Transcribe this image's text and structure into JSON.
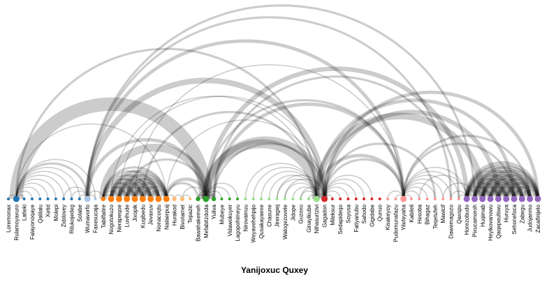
{
  "title": "Yanijoxuc Quxey",
  "groups": {
    "g1": "#1f77b4",
    "g2": "#aec7e8",
    "g3": "#ff7f0e",
    "g4": "#ffbb78",
    "g5": "#2ca02c",
    "g6": "#98df8a",
    "g7": "#d62728",
    "g8": "#ff9896",
    "g9": "#9467bd"
  },
  "nodes": [
    {
      "label": "Loremonax",
      "group": "g1",
      "size": 1
    },
    {
      "label": "Rulamoyaxuro",
      "group": "g1",
      "size": 3
    },
    {
      "label": "Latleki",
      "group": "g1",
      "size": 1
    },
    {
      "label": "Falayonoqaye",
      "group": "g1",
      "size": 1
    },
    {
      "label": "Qalilalu",
      "group": "g1",
      "size": 1
    },
    {
      "label": "Xetid",
      "group": "g1",
      "size": 1
    },
    {
      "label": "Molepi",
      "group": "g1",
      "size": 1
    },
    {
      "label": "Ziddovey",
      "group": "g1",
      "size": 1
    },
    {
      "label": "Rilukojedeg",
      "group": "g1",
      "size": 1
    },
    {
      "label": "Solabe",
      "group": "g1",
      "size": 1
    },
    {
      "label": "Wumavorfo",
      "group": "g2",
      "size": 3
    },
    {
      "label": "Faxesucaja",
      "group": "g2",
      "size": 1
    },
    {
      "label": "Tabilfatire",
      "group": "g3",
      "size": 2
    },
    {
      "label": "Nogotokuzo",
      "group": "g3",
      "size": 3
    },
    {
      "label": "Nerapeqoe",
      "group": "g3",
      "size": 3
    },
    {
      "label": "Luvihude",
      "group": "g3",
      "size": 3
    },
    {
      "label": "Jixopik",
      "group": "g3",
      "size": 3
    },
    {
      "label": "Kuqibedu",
      "group": "g3",
      "size": 3
    },
    {
      "label": "Jevaxuv",
      "group": "g3",
      "size": 3
    },
    {
      "label": "Nonacoqtu",
      "group": "g3",
      "size": 3
    },
    {
      "label": "Nalaerpuij",
      "group": "g3",
      "size": 3
    },
    {
      "label": "Hurakod",
      "group": "g4",
      "size": 2
    },
    {
      "label": "Bivotamet",
      "group": "g4",
      "size": 2
    },
    {
      "label": "Tepazic",
      "group": "g4",
      "size": 1
    },
    {
      "label": "Bawahakemeh",
      "group": "g5",
      "size": 2
    },
    {
      "label": "Mefabitzdoda",
      "group": "g5",
      "size": 3
    },
    {
      "label": "Yuliva",
      "group": "g5",
      "size": 2
    },
    {
      "label": "Mubeye",
      "group": "g5",
      "size": 1
    },
    {
      "label": "Vidawokuyer",
      "group": "g5",
      "size": 1
    },
    {
      "label": "Lagopohimeyu",
      "group": "g5",
      "size": 1
    },
    {
      "label": "Nirovamuu",
      "group": "g6",
      "size": 1
    },
    {
      "label": "Weyavehehpijo",
      "group": "g6",
      "size": 1
    },
    {
      "label": "Qusakayaexe",
      "group": "g6",
      "size": 1
    },
    {
      "label": "Chasune",
      "group": "g6",
      "size": 1
    },
    {
      "label": "Jireragiej",
      "group": "g6",
      "size": 1
    },
    {
      "label": "Walogezovele",
      "group": "g6",
      "size": 1
    },
    {
      "label": "Jidope",
      "group": "g6",
      "size": 1
    },
    {
      "label": "Guzoxu",
      "group": "g6",
      "size": 1
    },
    {
      "label": "Ginayikube",
      "group": "g6",
      "size": 1
    },
    {
      "label": "Nihasurtzivi",
      "group": "g6",
      "size": 3
    },
    {
      "label": "Gagadon",
      "group": "g7",
      "size": 3
    },
    {
      "label": "Mileksur",
      "group": "g7",
      "size": 1
    },
    {
      "label": "Sedapideqo",
      "group": "g7",
      "size": 1
    },
    {
      "label": "Soyusa",
      "group": "g7",
      "size": 1
    },
    {
      "label": "Fatiyanubu",
      "group": "g7",
      "size": 1
    },
    {
      "label": "Sahodo",
      "group": "g7",
      "size": 1
    },
    {
      "label": "Gigidabe",
      "group": "g7",
      "size": 1
    },
    {
      "label": "Qunuo",
      "group": "g7",
      "size": 1
    },
    {
      "label": "Kisakeyoy",
      "group": "g8",
      "size": 1
    },
    {
      "label": "Pudomunafazu",
      "group": "g8",
      "size": 1
    },
    {
      "label": "Yilefeyaha",
      "group": "g8",
      "size": 3
    },
    {
      "label": "Kabileli",
      "group": "g8",
      "size": 1
    },
    {
      "label": "Hesoba",
      "group": "g8",
      "size": 1
    },
    {
      "label": "Bihagaz",
      "group": "g8",
      "size": 1
    },
    {
      "label": "Teqetufeh",
      "group": "g8",
      "size": 1
    },
    {
      "label": "Mawicif",
      "group": "g8",
      "size": 1
    },
    {
      "label": "Dawemagozo",
      "group": "g8",
      "size": 1
    },
    {
      "label": "Qaxspu",
      "group": "g8",
      "size": 1
    },
    {
      "label": "Horezobudo",
      "group": "g9",
      "size": 3
    },
    {
      "label": "Pixucamoroh",
      "group": "g9",
      "size": 3
    },
    {
      "label": "Huqimab",
      "group": "g9",
      "size": 3
    },
    {
      "label": "Heyikovanowu",
      "group": "g9",
      "size": 3
    },
    {
      "label": "Qaqepeultiwu",
      "group": "g9",
      "size": 3
    },
    {
      "label": "Huruya",
      "group": "g9",
      "size": 3
    },
    {
      "label": "Sehonefoca",
      "group": "g9",
      "size": 3
    },
    {
      "label": "Zabegu",
      "group": "g9",
      "size": 3
    },
    {
      "label": "Judojanmo",
      "group": "g9",
      "size": 3
    },
    {
      "label": "Zacafinijelo",
      "group": "g9",
      "size": 3
    }
  ],
  "links": [
    {
      "source": 0,
      "target": 1,
      "value": 1
    },
    {
      "source": 1,
      "target": 2,
      "value": 1
    },
    {
      "source": 1,
      "target": 3,
      "value": 1
    },
    {
      "source": 1,
      "target": 4,
      "value": 1
    },
    {
      "source": 1,
      "target": 5,
      "value": 1
    },
    {
      "source": 1,
      "target": 6,
      "value": 1
    },
    {
      "source": 1,
      "target": 7,
      "value": 1
    },
    {
      "source": 1,
      "target": 8,
      "value": 1
    },
    {
      "source": 1,
      "target": 9,
      "value": 1
    },
    {
      "source": 1,
      "target": 10,
      "value": 2
    },
    {
      "source": 1,
      "target": 11,
      "value": 1
    },
    {
      "source": 1,
      "target": 20,
      "value": 1
    },
    {
      "source": 1,
      "target": 25,
      "value": 12
    },
    {
      "source": 1,
      "target": 39,
      "value": 2
    },
    {
      "source": 7,
      "target": 10,
      "value": 1
    },
    {
      "source": 8,
      "target": 10,
      "value": 1
    },
    {
      "source": 9,
      "target": 10,
      "value": 1
    },
    {
      "source": 10,
      "target": 11,
      "value": 1
    },
    {
      "source": 10,
      "target": 12,
      "value": 1
    },
    {
      "source": 10,
      "target": 25,
      "value": 3
    },
    {
      "source": 10,
      "target": 40,
      "value": 5
    },
    {
      "source": 10,
      "target": 50,
      "value": 3
    },
    {
      "source": 10,
      "target": 56,
      "value": 2
    },
    {
      "source": 10,
      "target": 59,
      "value": 2
    },
    {
      "source": 12,
      "target": 13,
      "value": 2
    },
    {
      "source": 12,
      "target": 14,
      "value": 2
    },
    {
      "source": 12,
      "target": 15,
      "value": 2
    },
    {
      "source": 12,
      "target": 16,
      "value": 2
    },
    {
      "source": 12,
      "target": 17,
      "value": 2
    },
    {
      "source": 12,
      "target": 18,
      "value": 2
    },
    {
      "source": 12,
      "target": 19,
      "value": 2
    },
    {
      "source": 12,
      "target": 20,
      "value": 2
    },
    {
      "source": 12,
      "target": 25,
      "value": 7
    },
    {
      "source": 13,
      "target": 14,
      "value": 3
    },
    {
      "source": 13,
      "target": 15,
      "value": 3
    },
    {
      "source": 13,
      "target": 16,
      "value": 3
    },
    {
      "source": 13,
      "target": 17,
      "value": 3
    },
    {
      "source": 13,
      "target": 18,
      "value": 3
    },
    {
      "source": 13,
      "target": 19,
      "value": 3
    },
    {
      "source": 13,
      "target": 20,
      "value": 3
    },
    {
      "source": 13,
      "target": 39,
      "value": 1
    },
    {
      "source": 14,
      "target": 15,
      "value": 3
    },
    {
      "source": 14,
      "target": 16,
      "value": 3
    },
    {
      "source": 14,
      "target": 17,
      "value": 3
    },
    {
      "source": 14,
      "target": 18,
      "value": 3
    },
    {
      "source": 14,
      "target": 19,
      "value": 3
    },
    {
      "source": 14,
      "target": 20,
      "value": 3
    },
    {
      "source": 14,
      "target": 40,
      "value": 1
    },
    {
      "source": 15,
      "target": 16,
      "value": 3
    },
    {
      "source": 15,
      "target": 17,
      "value": 3
    },
    {
      "source": 15,
      "target": 18,
      "value": 3
    },
    {
      "source": 15,
      "target": 19,
      "value": 3
    },
    {
      "source": 15,
      "target": 20,
      "value": 3
    },
    {
      "source": 16,
      "target": 17,
      "value": 3
    },
    {
      "source": 16,
      "target": 18,
      "value": 3
    },
    {
      "source": 16,
      "target": 19,
      "value": 3
    },
    {
      "source": 16,
      "target": 20,
      "value": 3
    },
    {
      "source": 16,
      "target": 50,
      "value": 1
    },
    {
      "source": 17,
      "target": 18,
      "value": 3
    },
    {
      "source": 17,
      "target": 19,
      "value": 3
    },
    {
      "source": 17,
      "target": 20,
      "value": 3
    },
    {
      "source": 18,
      "target": 19,
      "value": 3
    },
    {
      "source": 18,
      "target": 20,
      "value": 3
    },
    {
      "source": 19,
      "target": 20,
      "value": 3
    },
    {
      "source": 20,
      "target": 21,
      "value": 1
    },
    {
      "source": 20,
      "target": 24,
      "value": 2
    },
    {
      "source": 20,
      "target": 25,
      "value": 3
    },
    {
      "source": 20,
      "target": 40,
      "value": 1
    },
    {
      "source": 21,
      "target": 22,
      "value": 1
    },
    {
      "source": 22,
      "target": 23,
      "value": 1
    },
    {
      "source": 22,
      "target": 25,
      "value": 1
    },
    {
      "source": 15,
      "target": 25,
      "value": 2
    },
    {
      "source": 17,
      "target": 39,
      "value": 2
    },
    {
      "source": 24,
      "target": 25,
      "value": 2
    },
    {
      "source": 24,
      "target": 26,
      "value": 1
    },
    {
      "source": 25,
      "target": 26,
      "value": 2
    },
    {
      "source": 25,
      "target": 27,
      "value": 1
    },
    {
      "source": 25,
      "target": 28,
      "value": 1
    },
    {
      "source": 25,
      "target": 29,
      "value": 1
    },
    {
      "source": 25,
      "target": 39,
      "value": 8
    },
    {
      "source": 25,
      "target": 40,
      "value": 6
    },
    {
      "source": 25,
      "target": 50,
      "value": 2
    },
    {
      "source": 25,
      "target": 58,
      "value": 4
    },
    {
      "source": 26,
      "target": 40,
      "value": 2
    },
    {
      "source": 26,
      "target": 50,
      "value": 3
    },
    {
      "source": 26,
      "target": 57,
      "value": 2
    },
    {
      "source": 30,
      "target": 39,
      "value": 1
    },
    {
      "source": 31,
      "target": 39,
      "value": 1
    },
    {
      "source": 32,
      "target": 39,
      "value": 1
    },
    {
      "source": 33,
      "target": 39,
      "value": 1
    },
    {
      "source": 34,
      "target": 39,
      "value": 1
    },
    {
      "source": 35,
      "target": 39,
      "value": 1
    },
    {
      "source": 36,
      "target": 39,
      "value": 1
    },
    {
      "source": 37,
      "target": 39,
      "value": 1
    },
    {
      "source": 38,
      "target": 39,
      "value": 1
    },
    {
      "source": 34,
      "target": 40,
      "value": 1
    },
    {
      "source": 35,
      "target": 40,
      "value": 1
    },
    {
      "source": 37,
      "target": 40,
      "value": 1
    },
    {
      "source": 39,
      "target": 40,
      "value": 4
    },
    {
      "source": 39,
      "target": 50,
      "value": 3
    },
    {
      "source": 39,
      "target": 60,
      "value": 6
    },
    {
      "source": 39,
      "target": 64,
      "value": 3
    },
    {
      "source": 40,
      "target": 41,
      "value": 1
    },
    {
      "source": 40,
      "target": 42,
      "value": 1
    },
    {
      "source": 40,
      "target": 43,
      "value": 1
    },
    {
      "source": 40,
      "target": 44,
      "value": 1
    },
    {
      "source": 40,
      "target": 45,
      "value": 1
    },
    {
      "source": 40,
      "target": 46,
      "value": 1
    },
    {
      "source": 40,
      "target": 50,
      "value": 2
    },
    {
      "source": 40,
      "target": 54,
      "value": 2
    },
    {
      "source": 40,
      "target": 62,
      "value": 4
    },
    {
      "source": 40,
      "target": 67,
      "value": 3
    },
    {
      "source": 48,
      "target": 50,
      "value": 1
    },
    {
      "source": 49,
      "target": 50,
      "value": 1
    },
    {
      "source": 50,
      "target": 51,
      "value": 1
    },
    {
      "source": 50,
      "target": 52,
      "value": 1
    },
    {
      "source": 50,
      "target": 53,
      "value": 1
    },
    {
      "source": 50,
      "target": 54,
      "value": 1
    },
    {
      "source": 50,
      "target": 55,
      "value": 1
    },
    {
      "source": 50,
      "target": 56,
      "value": 1
    },
    {
      "source": 50,
      "target": 57,
      "value": 1
    },
    {
      "source": 50,
      "target": 58,
      "value": 1
    },
    {
      "source": 50,
      "target": 64,
      "value": 2
    },
    {
      "source": 50,
      "target": 66,
      "value": 2
    },
    {
      "source": 52,
      "target": 58,
      "value": 1
    },
    {
      "source": 55,
      "target": 59,
      "value": 1
    },
    {
      "source": 56,
      "target": 58,
      "value": 1
    },
    {
      "source": 57,
      "target": 58,
      "value": 1
    },
    {
      "source": 58,
      "target": 59,
      "value": 3
    },
    {
      "source": 58,
      "target": 60,
      "value": 3
    },
    {
      "source": 58,
      "target": 61,
      "value": 3
    },
    {
      "source": 58,
      "target": 62,
      "value": 3
    },
    {
      "source": 58,
      "target": 63,
      "value": 3
    },
    {
      "source": 58,
      "target": 64,
      "value": 3
    },
    {
      "source": 58,
      "target": 65,
      "value": 3
    },
    {
      "source": 58,
      "target": 66,
      "value": 3
    },
    {
      "source": 58,
      "target": 67,
      "value": 4
    },
    {
      "source": 59,
      "target": 60,
      "value": 3
    },
    {
      "source": 59,
      "target": 61,
      "value": 3
    },
    {
      "source": 59,
      "target": 62,
      "value": 3
    },
    {
      "source": 59,
      "target": 63,
      "value": 3
    },
    {
      "source": 59,
      "target": 64,
      "value": 3
    },
    {
      "source": 59,
      "target": 65,
      "value": 3
    },
    {
      "source": 59,
      "target": 66,
      "value": 3
    },
    {
      "source": 59,
      "target": 67,
      "value": 3
    },
    {
      "source": 60,
      "target": 61,
      "value": 3
    },
    {
      "source": 60,
      "target": 62,
      "value": 3
    },
    {
      "source": 60,
      "target": 63,
      "value": 3
    },
    {
      "source": 60,
      "target": 64,
      "value": 3
    },
    {
      "source": 60,
      "target": 65,
      "value": 3
    },
    {
      "source": 60,
      "target": 66,
      "value": 3
    },
    {
      "source": 60,
      "target": 67,
      "value": 3
    },
    {
      "source": 61,
      "target": 62,
      "value": 3
    },
    {
      "source": 61,
      "target": 63,
      "value": 3
    },
    {
      "source": 61,
      "target": 64,
      "value": 3
    },
    {
      "source": 61,
      "target": 65,
      "value": 3
    },
    {
      "source": 61,
      "target": 66,
      "value": 3
    },
    {
      "source": 61,
      "target": 67,
      "value": 3
    },
    {
      "source": 62,
      "target": 63,
      "value": 3
    },
    {
      "source": 62,
      "target": 64,
      "value": 3
    },
    {
      "source": 62,
      "target": 65,
      "value": 3
    },
    {
      "source": 62,
      "target": 66,
      "value": 3
    },
    {
      "source": 62,
      "target": 67,
      "value": 3
    },
    {
      "source": 63,
      "target": 64,
      "value": 3
    },
    {
      "source": 63,
      "target": 65,
      "value": 3
    },
    {
      "source": 63,
      "target": 66,
      "value": 3
    },
    {
      "source": 63,
      "target": 67,
      "value": 3
    },
    {
      "source": 64,
      "target": 65,
      "value": 3
    },
    {
      "source": 64,
      "target": 66,
      "value": 3
    },
    {
      "source": 64,
      "target": 67,
      "value": 3
    },
    {
      "source": 65,
      "target": 66,
      "value": 3
    },
    {
      "source": 65,
      "target": 67,
      "value": 3
    },
    {
      "source": 66,
      "target": 67,
      "value": 3
    }
  ]
}
